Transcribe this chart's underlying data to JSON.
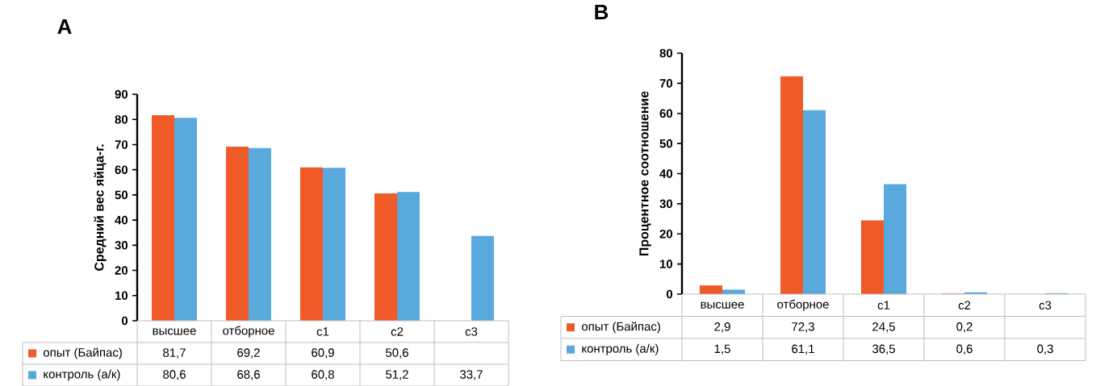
{
  "chart_data": [
    {
      "type": "bar",
      "title": "A",
      "ylabel": "Средний вес яйца-г.",
      "categories": [
        "высшее",
        "отборное",
        "с1",
        "с2",
        "с3"
      ],
      "ylim": [
        0,
        90
      ],
      "yticks": [
        0,
        10,
        20,
        30,
        40,
        50,
        60,
        70,
        80,
        90
      ],
      "legend": "bottom",
      "series": [
        {
          "name": "опыт (Байпас)",
          "color": "#f05a28",
          "values": [
            81.7,
            69.2,
            60.9,
            50.6,
            null
          ],
          "value_labels": [
            "81,7",
            "69,2",
            "60,9",
            "50,6",
            null
          ]
        },
        {
          "name": "контроль (а/к)",
          "color": "#5aa9dc",
          "values": [
            80.6,
            68.6,
            60.8,
            51.2,
            33.7
          ],
          "value_labels": [
            "80,6",
            "68,6",
            "60,8",
            "51,2",
            "33,7"
          ]
        }
      ]
    },
    {
      "type": "bar",
      "title": "B",
      "ylabel": "Процентное соотношение",
      "categories": [
        "высшее",
        "отборное",
        "с1",
        "с2",
        "с3"
      ],
      "ylim": [
        0,
        80
      ],
      "yticks": [
        0,
        10,
        20,
        30,
        40,
        50,
        60,
        70,
        80
      ],
      "legend": "bottom",
      "series": [
        {
          "name": "опыт (Байпас)",
          "color": "#f05a28",
          "values": [
            2.9,
            72.3,
            24.5,
            0.2,
            null
          ],
          "value_labels": [
            "2,9",
            "72,3",
            "24,5",
            "0,2",
            null
          ]
        },
        {
          "name": "контроль (а/к)",
          "color": "#5aa9dc",
          "values": [
            1.5,
            61.1,
            36.5,
            0.6,
            0.3
          ],
          "value_labels": [
            "1,5",
            "61,1",
            "36,5",
            "0,6",
            "0,3"
          ]
        }
      ]
    }
  ]
}
